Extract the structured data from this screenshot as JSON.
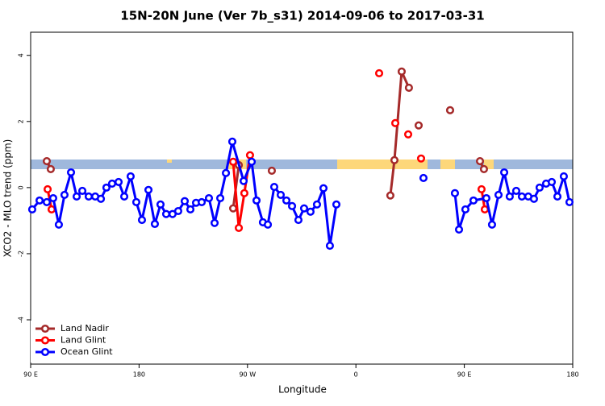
{
  "chart_data": {
    "type": "line",
    "title": "15N-20N June (Ver 7b_s31)   2014-09-06 to 2017-03-31",
    "x_label": "Longitude",
    "y_label": "XCO2 - MLO trend (ppm)",
    "xlim": [
      90,
      540
    ],
    "xticks": [
      {
        "value": 90,
        "label": "90 E"
      },
      {
        "value": 180,
        "label": "180"
      },
      {
        "value": 270,
        "label": "90 W"
      },
      {
        "value": 360,
        "label": "0"
      },
      {
        "value": 450,
        "label": "90 E"
      },
      {
        "value": 540,
        "label": "180"
      }
    ],
    "ylim": [
      -5.34,
      4.7
    ],
    "yticks": [
      -4,
      -2,
      0,
      2,
      4
    ],
    "legend": "bottomleft",
    "series": [
      {
        "name": "Land Nadir",
        "color": "#a52a2a",
        "x": [
          103.4,
          106.7,
          180,
          258.1,
          262.8,
          276,
          290.2,
          340,
          388.6,
          392.0,
          398.0,
          404.0,
          408,
          412.1,
          425,
          438.2,
          450,
          463.0,
          466.3
        ],
        "values": [
          0.8,
          0.56,
          null,
          -0.63,
          0.68,
          null,
          0.51,
          null,
          -0.24,
          0.83,
          3.51,
          3.02,
          null,
          1.88,
          null,
          2.34,
          null,
          0.8,
          0.56
        ]
      },
      {
        "name": "Land Glint",
        "color": "#ff0000",
        "x": [
          104.1,
          107.4,
          180,
          258.1,
          262.8,
          267.4,
          272.1,
          320,
          379.3,
          386,
          392.7,
          398,
          403.4,
          409,
          414.1,
          440,
          464.3,
          467.0
        ],
        "values": [
          -0.05,
          -0.66,
          null,
          0.78,
          -1.22,
          -0.17,
          0.98,
          null,
          3.46,
          null,
          1.95,
          null,
          1.61,
          null,
          0.88,
          null,
          -0.05,
          -0.66
        ]
      },
      {
        "name": "Ocean Glint",
        "color": "#0000ff",
        "x": [
          91.3,
          97.4,
          103.4,
          108.7,
          113.4,
          118.1,
          123.5,
          128.2,
          132.9,
          138.2,
          143.6,
          148.3,
          152.9,
          157.6,
          163.0,
          167.7,
          173.0,
          177.7,
          182.4,
          187.8,
          193.1,
          197.8,
          202.5,
          207.8,
          212.5,
          217.9,
          222.6,
          227.3,
          232.0,
          238.0,
          242.7,
          247.4,
          252.1,
          257.4,
          266.8,
          273.5,
          277.5,
          282.8,
          286.9,
          292.2,
          297.6,
          302.3,
          307.0,
          312.3,
          317.0,
          322.3,
          327.7,
          333.1,
          338.4,
          343.8,
          380,
          416.1,
          429,
          442.2,
          445.6,
          450.9,
          457.6,
          468.3,
          473.0,
          478.4,
          483.1,
          487.7,
          493.1,
          497.8,
          503.1,
          507.8,
          512.5,
          517.9,
          522.6,
          527.3,
          532.6,
          537.3
        ],
        "values": [
          -0.66,
          -0.39,
          -0.44,
          -0.32,
          -1.12,
          -0.22,
          0.46,
          -0.27,
          -0.1,
          -0.27,
          -0.27,
          -0.34,
          0,
          0.12,
          0.17,
          -0.27,
          0.34,
          -0.44,
          -0.98,
          -0.07,
          -1.1,
          -0.51,
          -0.8,
          -0.8,
          -0.71,
          -0.41,
          -0.66,
          -0.46,
          -0.44,
          -0.32,
          -1.07,
          -0.32,
          0.44,
          1.39,
          0.2,
          0.78,
          -0.39,
          -1.05,
          -1.12,
          0.02,
          -0.22,
          -0.39,
          -0.56,
          -0.98,
          -0.63,
          -0.73,
          -0.51,
          -0.02,
          -1.76,
          -0.51,
          null,
          0.29,
          null,
          -0.17,
          -1.27,
          -0.66,
          -0.39,
          -0.32,
          -1.12,
          -0.22,
          0.46,
          -0.27,
          -0.1,
          -0.27,
          -0.27,
          -0.34,
          0,
          0.12,
          0.17,
          -0.27,
          0.34,
          -0.44
        ]
      }
    ]
  }
}
